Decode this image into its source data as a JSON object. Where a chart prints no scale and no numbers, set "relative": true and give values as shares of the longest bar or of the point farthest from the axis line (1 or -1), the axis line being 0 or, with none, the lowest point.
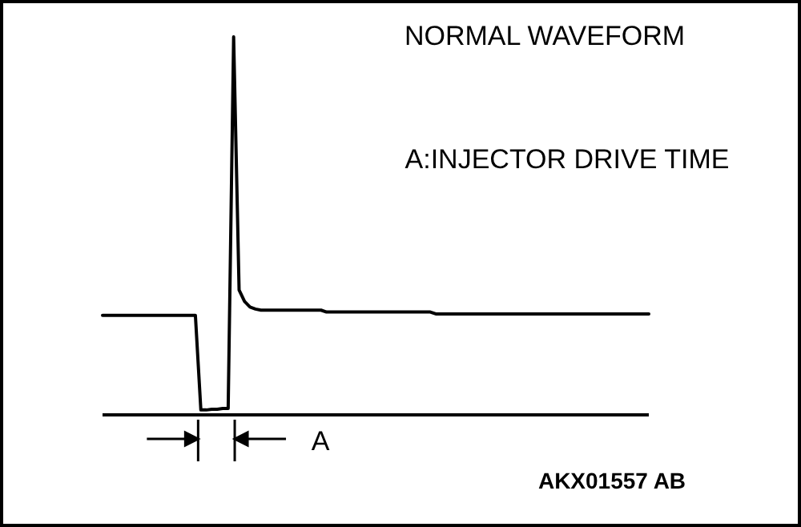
{
  "chart_data": {
    "type": "line",
    "relative": true,
    "title": "NORMAL  WAVEFORM",
    "annotations": [
      "A:INJECTOR DRIVE TIME",
      "A",
      "AKX01557 AB"
    ],
    "categories": [
      null,
      null,
      null,
      null,
      null,
      null,
      null,
      null,
      null,
      null,
      null,
      null,
      null,
      null,
      null,
      null,
      null,
      null,
      null,
      null,
      null,
      null,
      null,
      null,
      null,
      null,
      null,
      null,
      null,
      null,
      null,
      null,
      null,
      null,
      null,
      null,
      null,
      null,
      null,
      null,
      null,
      null,
      null,
      null,
      null,
      null,
      null,
      null,
      null,
      null,
      null,
      null,
      null,
      null,
      null,
      null,
      null,
      null,
      null,
      null,
      null,
      null,
      null,
      null,
      null,
      null,
      null,
      null,
      null,
      null,
      null,
      null,
      null,
      null,
      null,
      null,
      null,
      null,
      null,
      null,
      null,
      null,
      null,
      null,
      null,
      null,
      null,
      null,
      null,
      null,
      null,
      null,
      null,
      null,
      null,
      null,
      null,
      null,
      null,
      null,
      null
    ],
    "marker": "none",
    "line_style": "solid",
    "series": [
      {
        "color": "#000000",
        "values": [
          0.263,
          0.263,
          0.263,
          0.263,
          0.263,
          0.263,
          0.263,
          0.263,
          0.263,
          0.263,
          0.263,
          0.263,
          0.263,
          0.263,
          0.263,
          0.263,
          0.263,
          0.263,
          0.013,
          0.013,
          0.015,
          0.015,
          0.017,
          0.017,
          1,
          0.33,
          0.3,
          0.285,
          0.28,
          0.277,
          0.277,
          0.277,
          0.277,
          0.277,
          0.277,
          0.277,
          0.277,
          0.277,
          0.277,
          0.277,
          0.277,
          0.272,
          0.272,
          0.272,
          0.272,
          0.272,
          0.272,
          0.272,
          0.272,
          0.272,
          0.272,
          0.272,
          0.272,
          0.272,
          0.272,
          0.272,
          0.272,
          0.272,
          0.272,
          0.272,
          0.272,
          0.267,
          0.267,
          0.267,
          0.267,
          0.267,
          0.267,
          0.267,
          0.267,
          0.267,
          0.267,
          0.267,
          0.267,
          0.267,
          0.267,
          0.267,
          0.267,
          0.267,
          0.267,
          0.267,
          0.267,
          0.267,
          0.267,
          0.267,
          0.267,
          0.267,
          0.267,
          0.267,
          0.267,
          0.267,
          0.267,
          0.267,
          0.267,
          0.267,
          0.267,
          0.267,
          0.267,
          0.267,
          0.267,
          0.267,
          0.267
        ]
      }
    ]
  }
}
